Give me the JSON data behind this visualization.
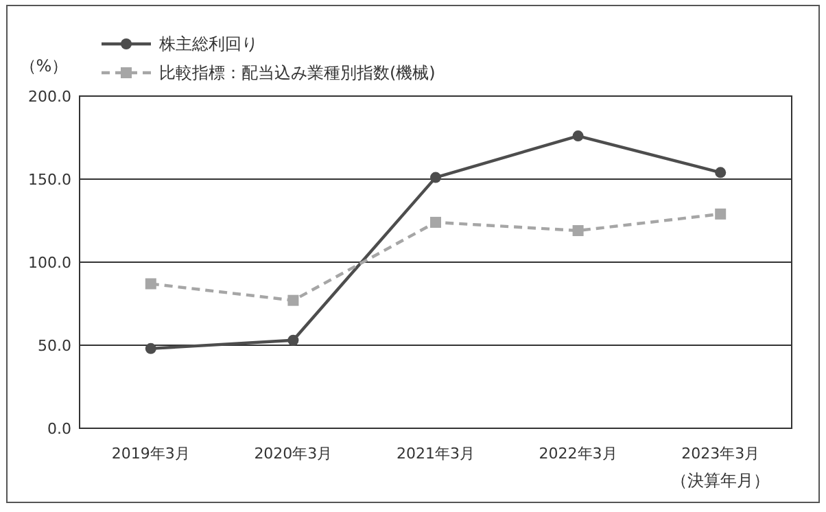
{
  "chart_data": {
    "type": "line",
    "ylabel": "（%）",
    "xlabel": "（決算年月）",
    "categories": [
      "2019年3月",
      "2020年3月",
      "2021年3月",
      "2022年3月",
      "2023年3月"
    ],
    "series": [
      {
        "name": "株主総利回り",
        "color": "#4d4d4d",
        "marker": "circle",
        "line_style": "solid",
        "values": [
          48,
          53,
          151,
          176,
          154
        ]
      },
      {
        "name": "比較指標：配当込み業種別指数(機械)",
        "color": "#a6a6a6",
        "marker": "square",
        "line_style": "dashed",
        "values": [
          87,
          77,
          124,
          119,
          129
        ]
      }
    ],
    "ylim": [
      0,
      200
    ],
    "yticks": [
      {
        "value": 0,
        "label": "0.0"
      },
      {
        "value": 50,
        "label": "50.0"
      },
      {
        "value": 100,
        "label": "100.0"
      },
      {
        "value": 150,
        "label": "150.0"
      },
      {
        "value": 200,
        "label": "200.0"
      }
    ],
    "grid": "y",
    "legend": "top left"
  }
}
